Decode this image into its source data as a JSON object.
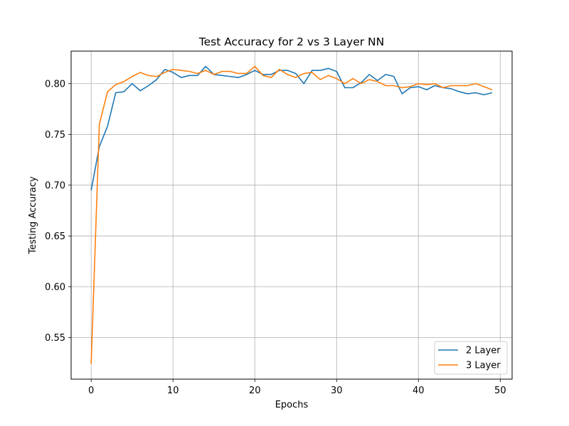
{
  "chart_data": {
    "type": "line",
    "title": "Test Accuracy for 2 vs 3 Layer NN",
    "xlabel": "Epochs",
    "ylabel": "Testing Accuracy",
    "xlim": [
      -2.45,
      51.45
    ],
    "ylim": [
      0.509,
      0.832
    ],
    "xticks": [
      0,
      10,
      20,
      30,
      40,
      50
    ],
    "yticks": [
      0.55,
      0.6,
      0.65,
      0.7,
      0.75,
      0.8
    ],
    "ytick_labels": [
      "0.55",
      "0.60",
      "0.65",
      "0.70",
      "0.75",
      "0.80"
    ],
    "grid": true,
    "legend_position": "bottom-right",
    "x": [
      0,
      1,
      2,
      3,
      4,
      5,
      6,
      7,
      8,
      9,
      10,
      11,
      12,
      13,
      14,
      15,
      16,
      17,
      18,
      19,
      20,
      21,
      22,
      23,
      24,
      25,
      26,
      27,
      28,
      29,
      30,
      31,
      32,
      33,
      34,
      35,
      36,
      37,
      38,
      39,
      40,
      41,
      42,
      43,
      44,
      45,
      46,
      47,
      48,
      49
    ],
    "series": [
      {
        "name": "2 Layer",
        "color": "#1f77b4",
        "values": [
          0.695,
          0.738,
          0.758,
          0.791,
          0.792,
          0.8,
          0.793,
          0.798,
          0.804,
          0.814,
          0.811,
          0.806,
          0.808,
          0.808,
          0.817,
          0.809,
          0.808,
          0.807,
          0.806,
          0.809,
          0.813,
          0.809,
          0.809,
          0.813,
          0.813,
          0.81,
          0.8,
          0.813,
          0.813,
          0.815,
          0.812,
          0.796,
          0.796,
          0.801,
          0.809,
          0.803,
          0.809,
          0.807,
          0.79,
          0.796,
          0.797,
          0.794,
          0.798,
          0.796,
          0.795,
          0.792,
          0.79,
          0.791,
          0.789,
          0.791
        ]
      },
      {
        "name": "3 Layer",
        "color": "#ff7f0e",
        "values": [
          0.524,
          0.76,
          0.792,
          0.799,
          0.802,
          0.807,
          0.811,
          0.808,
          0.807,
          0.811,
          0.814,
          0.813,
          0.812,
          0.81,
          0.813,
          0.809,
          0.812,
          0.812,
          0.81,
          0.81,
          0.817,
          0.808,
          0.806,
          0.814,
          0.809,
          0.806,
          0.81,
          0.811,
          0.804,
          0.808,
          0.805,
          0.8,
          0.805,
          0.8,
          0.804,
          0.802,
          0.798,
          0.798,
          0.796,
          0.797,
          0.8,
          0.799,
          0.8,
          0.796,
          0.798,
          0.798,
          0.798,
          0.8,
          0.797,
          0.794
        ]
      }
    ]
  }
}
